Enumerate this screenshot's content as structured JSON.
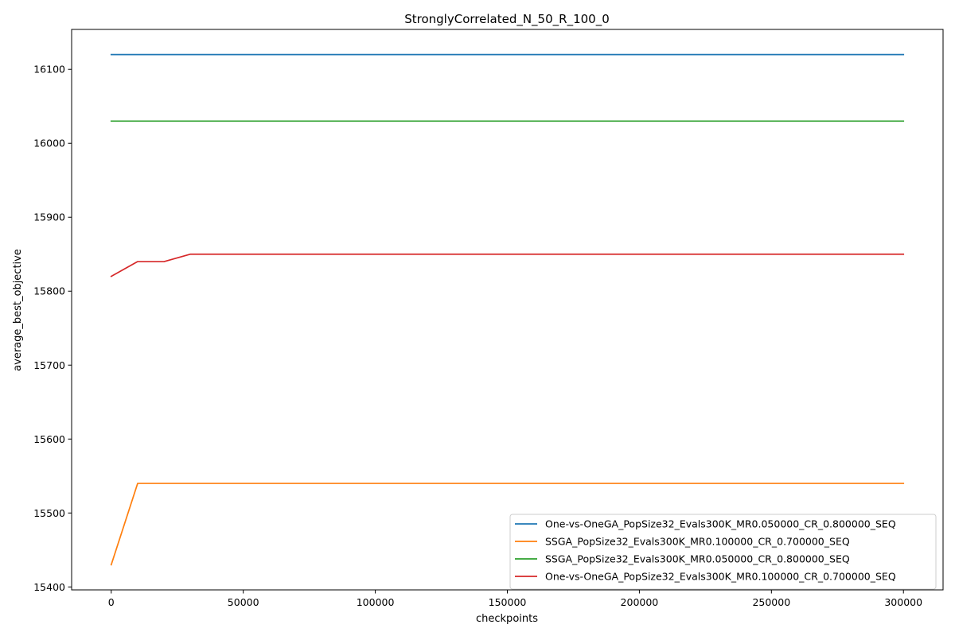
{
  "chart_data": {
    "type": "line",
    "title": "StronglyCorrelated_N_50_R_100_0",
    "xlabel": "checkpoints",
    "ylabel": "average_best_objective",
    "xlim": [
      -15000,
      315000
    ],
    "ylim": [
      15396,
      16154
    ],
    "xticks": [
      0,
      50000,
      100000,
      150000,
      200000,
      250000,
      300000
    ],
    "xtick_labels": [
      "0",
      "50000",
      "100000",
      "150000",
      "200000",
      "250000",
      "300000"
    ],
    "yticks": [
      15400,
      15500,
      15600,
      15700,
      15800,
      15900,
      16000,
      16100
    ],
    "ytick_labels": [
      "15400",
      "15500",
      "15600",
      "15700",
      "15800",
      "15900",
      "16000",
      "16100"
    ],
    "grid": false,
    "legend_position": "lower-right",
    "series": [
      {
        "name": "One-vs-OneGA_PopSize32_Evals300K_MR0.050000_CR_0.800000_SEQ",
        "color": "#1f77b4",
        "x": [
          0,
          10000,
          20000,
          30000,
          300000
        ],
        "y": [
          16120,
          16120,
          16120,
          16120,
          16120
        ]
      },
      {
        "name": "SSGA_PopSize32_Evals300K_MR0.100000_CR_0.700000_SEQ",
        "color": "#ff7f0e",
        "x": [
          0,
          10000,
          20000,
          30000,
          300000
        ],
        "y": [
          15430,
          15540,
          15540,
          15540,
          15540
        ]
      },
      {
        "name": "SSGA_PopSize32_Evals300K_MR0.050000_CR_0.800000_SEQ",
        "color": "#2ca02c",
        "x": [
          0,
          10000,
          20000,
          30000,
          300000
        ],
        "y": [
          16030,
          16030,
          16030,
          16030,
          16030
        ]
      },
      {
        "name": "One-vs-OneGA_PopSize32_Evals300K_MR0.100000_CR_0.700000_SEQ",
        "color": "#d62728",
        "x": [
          0,
          10000,
          20000,
          30000,
          300000
        ],
        "y": [
          15820,
          15840,
          15840,
          15850,
          15850
        ]
      }
    ]
  }
}
